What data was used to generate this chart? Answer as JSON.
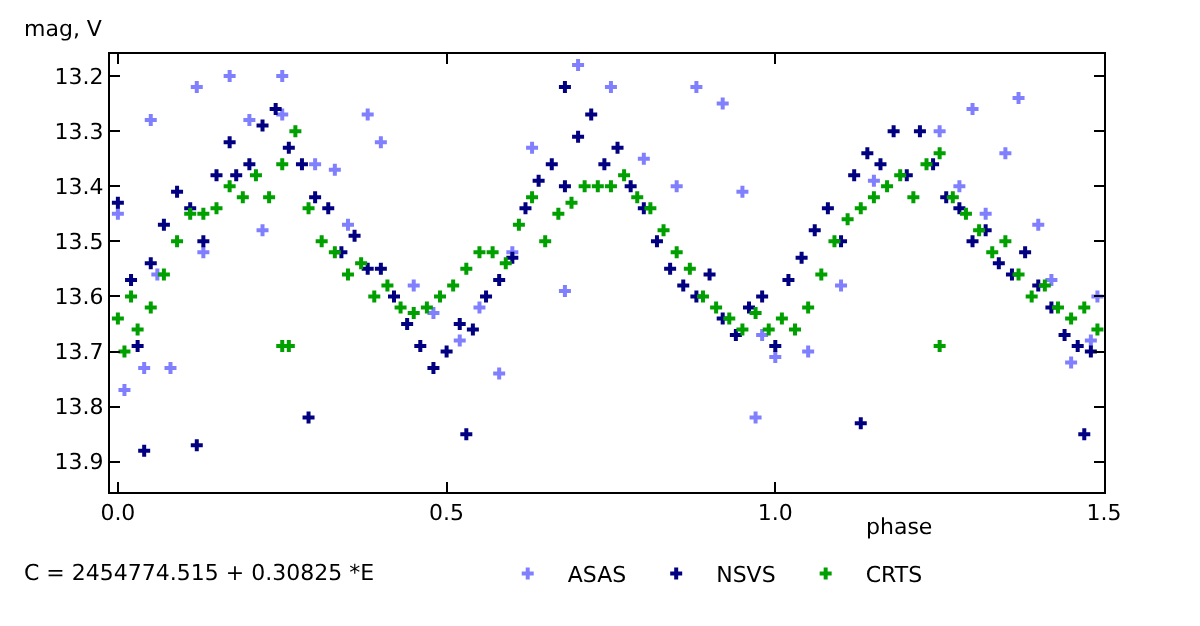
{
  "chart_data": {
    "type": "scatter",
    "xlabel": "phase",
    "ylabel": "mag, V",
    "annotations": [
      "C = 2454774.515 + 0.30825 *E"
    ],
    "xlim": [
      -0.012,
      1.5
    ],
    "ylim": [
      13.955,
      13.16
    ],
    "xticks": [
      {
        "value": 0,
        "label": "0.0"
      },
      0.5,
      {
        "value": 1,
        "label": "1.0"
      },
      1.5
    ],
    "yticks": [
      13.2,
      13.3,
      13.4,
      13.5,
      13.6,
      13.7,
      13.8,
      13.9
    ],
    "legend": "bottom",
    "marker": "cross",
    "series": [
      {
        "name": "ASAS",
        "color": "#8080ff",
        "x": [
          0.01,
          0.0,
          0.04,
          0.06,
          0.08,
          0.05,
          0.12,
          0.17,
          0.2,
          0.25,
          0.25,
          0.3,
          0.33,
          0.35,
          0.38,
          0.4,
          0.45,
          0.48,
          0.52,
          0.55,
          0.58,
          0.6,
          0.63,
          0.68,
          0.7,
          0.75,
          0.8,
          0.85,
          0.88,
          0.92,
          0.95,
          0.97,
          0.98,
          1.0,
          1.05,
          1.1,
          1.15,
          1.25,
          1.3,
          1.35,
          1.4,
          1.42,
          1.45,
          1.48,
          1.49,
          1.32,
          0.22,
          0.13,
          1.37,
          1.28
        ],
        "values": [
          13.77,
          13.45,
          13.73,
          13.56,
          13.73,
          13.28,
          13.22,
          13.2,
          13.28,
          13.2,
          13.27,
          13.36,
          13.37,
          13.47,
          13.27,
          13.32,
          13.58,
          13.63,
          13.68,
          13.62,
          13.74,
          13.52,
          13.33,
          13.59,
          13.18,
          13.22,
          13.35,
          13.4,
          13.22,
          13.25,
          13.41,
          13.82,
          13.67,
          13.71,
          13.7,
          13.58,
          13.39,
          13.3,
          13.26,
          13.34,
          13.47,
          13.57,
          13.72,
          13.68,
          13.6,
          13.45,
          13.48,
          13.52,
          13.24,
          13.4
        ]
      },
      {
        "name": "NSVS",
        "color": "#000080",
        "x": [
          0.0,
          0.02,
          0.03,
          0.04,
          0.05,
          0.07,
          0.09,
          0.11,
          0.13,
          0.15,
          0.17,
          0.18,
          0.2,
          0.22,
          0.24,
          0.26,
          0.28,
          0.3,
          0.32,
          0.34,
          0.36,
          0.38,
          0.4,
          0.42,
          0.44,
          0.46,
          0.48,
          0.5,
          0.52,
          0.54,
          0.56,
          0.58,
          0.6,
          0.62,
          0.64,
          0.66,
          0.68,
          0.7,
          0.72,
          0.74,
          0.76,
          0.78,
          0.8,
          0.82,
          0.84,
          0.86,
          0.88,
          0.9,
          0.92,
          0.94,
          0.96,
          0.98,
          1.0,
          1.02,
          1.04,
          1.06,
          1.08,
          1.1,
          1.12,
          1.14,
          1.16,
          1.18,
          1.2,
          1.22,
          1.24,
          1.26,
          1.28,
          1.3,
          1.32,
          1.34,
          1.36,
          1.38,
          1.4,
          1.42,
          1.44,
          1.46,
          1.48,
          0.68,
          0.29,
          0.53,
          1.13,
          1.47,
          0.12
        ],
        "values": [
          13.43,
          13.57,
          13.69,
          13.88,
          13.54,
          13.47,
          13.41,
          13.44,
          13.5,
          13.38,
          13.32,
          13.38,
          13.36,
          13.29,
          13.26,
          13.33,
          13.36,
          13.42,
          13.44,
          13.52,
          13.49,
          13.55,
          13.55,
          13.6,
          13.65,
          13.69,
          13.73,
          13.7,
          13.65,
          13.66,
          13.6,
          13.57,
          13.53,
          13.44,
          13.39,
          13.36,
          13.4,
          13.31,
          13.27,
          13.36,
          13.33,
          13.4,
          13.44,
          13.5,
          13.55,
          13.58,
          13.6,
          13.56,
          13.64,
          13.67,
          13.62,
          13.6,
          13.69,
          13.57,
          13.53,
          13.48,
          13.44,
          13.5,
          13.38,
          13.34,
          13.36,
          13.3,
          13.38,
          13.3,
          13.36,
          13.42,
          13.44,
          13.5,
          13.48,
          13.54,
          13.56,
          13.52,
          13.58,
          13.62,
          13.67,
          13.69,
          13.7,
          13.22,
          13.82,
          13.85,
          13.83,
          13.85,
          13.87
        ]
      },
      {
        "name": "CRTS",
        "color": "#00a000",
        "x": [
          0.0,
          0.01,
          0.02,
          0.03,
          0.05,
          0.07,
          0.09,
          0.11,
          0.13,
          0.15,
          0.17,
          0.19,
          0.21,
          0.23,
          0.25,
          0.27,
          0.29,
          0.31,
          0.33,
          0.35,
          0.37,
          0.39,
          0.41,
          0.43,
          0.45,
          0.47,
          0.49,
          0.51,
          0.53,
          0.55,
          0.57,
          0.59,
          0.61,
          0.63,
          0.65,
          0.67,
          0.69,
          0.71,
          0.73,
          0.75,
          0.77,
          0.79,
          0.81,
          0.83,
          0.85,
          0.87,
          0.89,
          0.91,
          0.93,
          0.95,
          0.97,
          0.99,
          1.01,
          1.03,
          1.05,
          1.07,
          1.09,
          1.11,
          1.13,
          1.15,
          1.17,
          1.19,
          1.21,
          1.23,
          1.25,
          1.27,
          1.29,
          1.31,
          1.33,
          1.35,
          1.37,
          1.39,
          1.41,
          1.43,
          1.45,
          1.47,
          1.49,
          0.25,
          0.26,
          1.25
        ],
        "values": [
          13.64,
          13.7,
          13.6,
          13.66,
          13.62,
          13.56,
          13.5,
          13.45,
          13.45,
          13.44,
          13.4,
          13.42,
          13.38,
          13.42,
          13.36,
          13.3,
          13.44,
          13.5,
          13.52,
          13.56,
          13.54,
          13.6,
          13.58,
          13.62,
          13.63,
          13.62,
          13.6,
          13.58,
          13.55,
          13.52,
          13.52,
          13.54,
          13.47,
          13.42,
          13.5,
          13.45,
          13.43,
          13.4,
          13.4,
          13.4,
          13.38,
          13.42,
          13.44,
          13.48,
          13.52,
          13.55,
          13.6,
          13.62,
          13.64,
          13.66,
          13.63,
          13.66,
          13.64,
          13.66,
          13.62,
          13.56,
          13.5,
          13.46,
          13.44,
          13.42,
          13.4,
          13.38,
          13.42,
          13.36,
          13.34,
          13.42,
          13.45,
          13.48,
          13.52,
          13.5,
          13.56,
          13.6,
          13.58,
          13.62,
          13.64,
          13.62,
          13.66,
          13.69,
          13.69,
          13.69
        ]
      }
    ]
  }
}
